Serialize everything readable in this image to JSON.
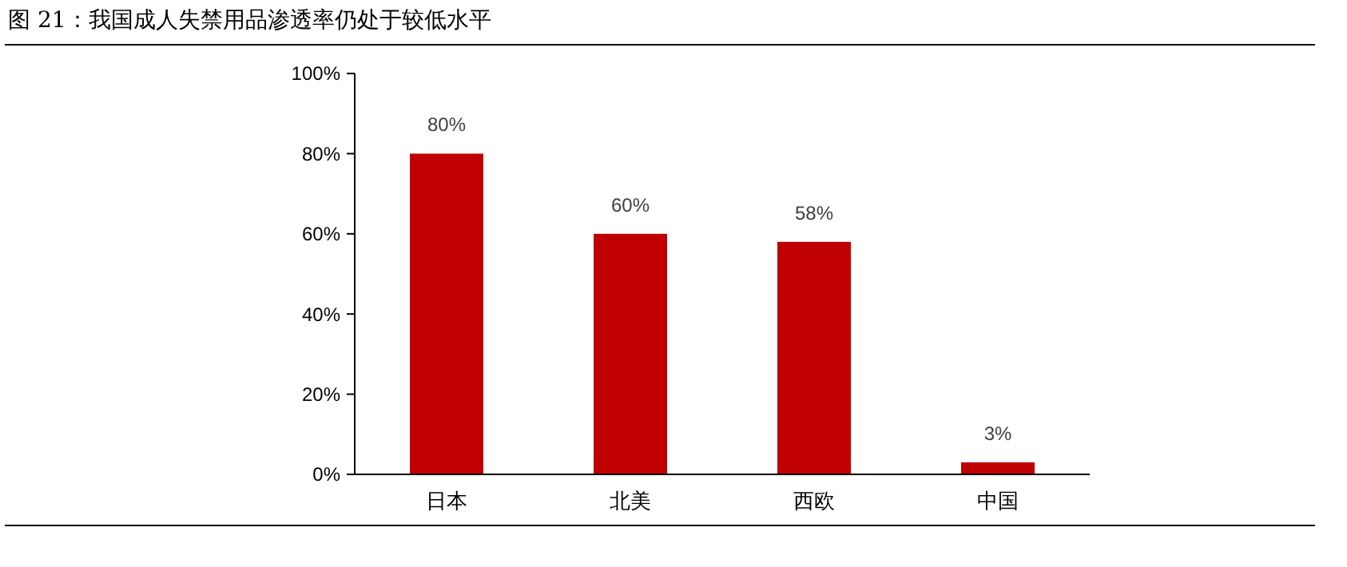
{
  "chart_data": {
    "type": "bar",
    "title": "图 21：我国成人失禁用品渗透率仍处于较低水平",
    "categories": [
      "日本",
      "北美",
      "西欧",
      "中国"
    ],
    "values": [
      80,
      60,
      58,
      3
    ],
    "value_labels": [
      "80%",
      "60%",
      "58%",
      "3%"
    ],
    "color": "#c00000",
    "ylim": [
      0,
      100
    ],
    "yticks": [
      {
        "value": 0,
        "label": "0%"
      },
      {
        "value": 20,
        "label": "20%"
      },
      {
        "value": 40,
        "label": "40%"
      },
      {
        "value": 60,
        "label": "60%"
      },
      {
        "value": 80,
        "label": "80%"
      },
      {
        "value": 100,
        "label": "100%"
      }
    ],
    "grid": false
  }
}
